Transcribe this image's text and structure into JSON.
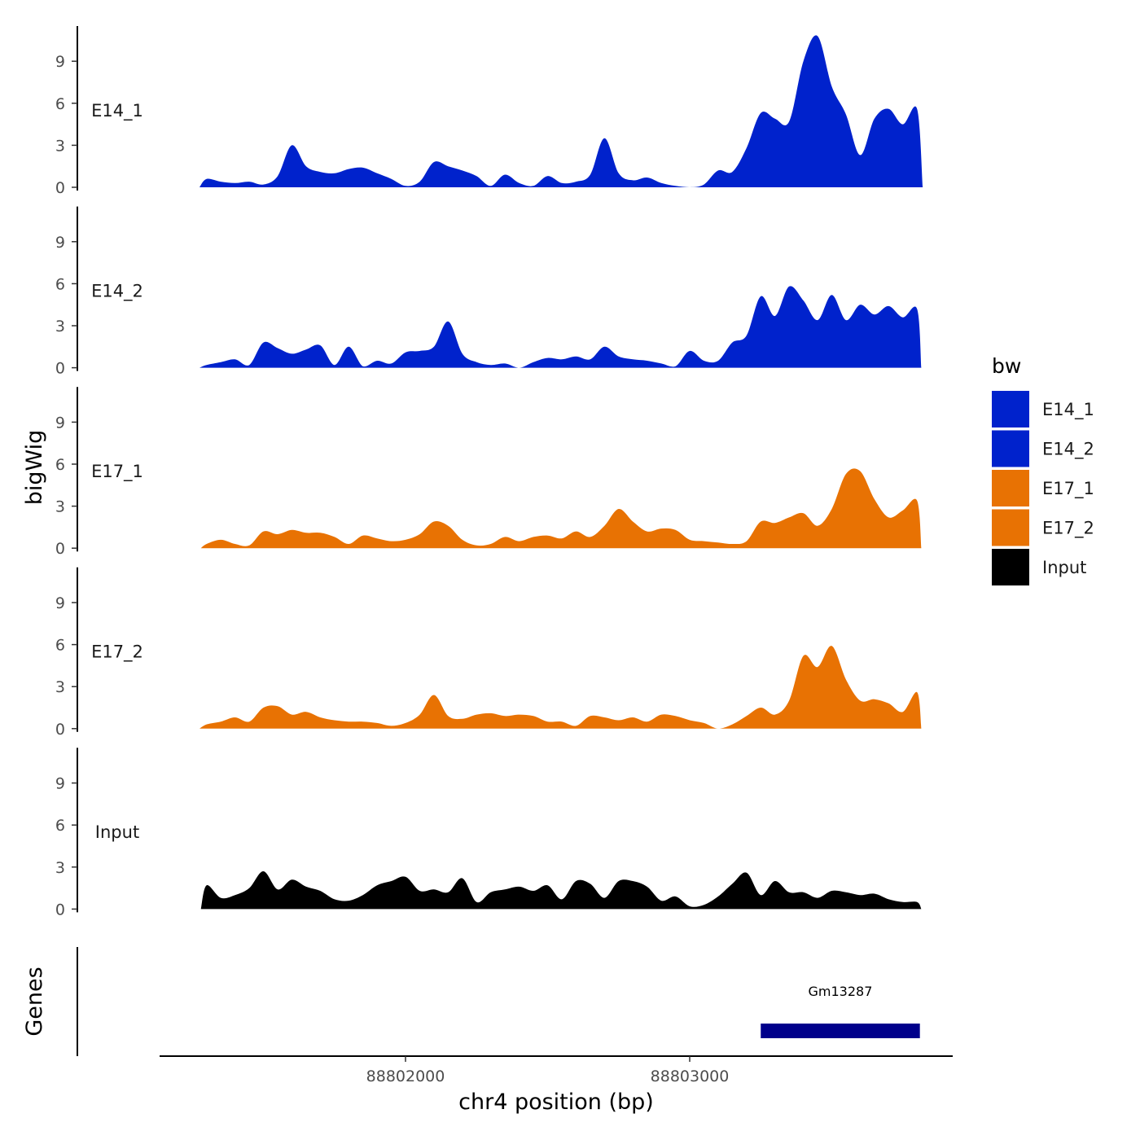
{
  "chart_data": {
    "type": "area",
    "title": "",
    "ylabel": "bigWig",
    "xlabel": "chr4 position (bp)",
    "xlim": [
      88801140,
      88803950
    ],
    "ylim": [
      0,
      11
    ],
    "yticks": [
      0,
      3,
      6,
      9
    ],
    "xticks": [
      88802000,
      88803000
    ],
    "xtick_labels": [
      "88802000",
      "88803000"
    ],
    "genes_label": "Genes",
    "legend_title": "bw",
    "legend": [
      {
        "name": "E14_1",
        "color": "#0022CC"
      },
      {
        "name": "E14_2",
        "color": "#0022CC"
      },
      {
        "name": "E17_1",
        "color": "#E87203"
      },
      {
        "name": "E17_2",
        "color": "#E87203"
      },
      {
        "name": "Input",
        "color": "#000000"
      }
    ],
    "tracks": [
      {
        "name": "E14_1",
        "color": "#0022CC",
        "x": [
          88801275,
          88801300,
          88801350,
          88801400,
          88801450,
          88801500,
          88801550,
          88801600,
          88801650,
          88801700,
          88801750,
          88801800,
          88801850,
          88801900,
          88801950,
          88802000,
          88802050,
          88802100,
          88802150,
          88802200,
          88802250,
          88802300,
          88802350,
          88802400,
          88802450,
          88802500,
          88802550,
          88802600,
          88802650,
          88802700,
          88802750,
          88802800,
          88802850,
          88802900,
          88802950,
          88803000,
          88803050,
          88803100,
          88803150,
          88803200,
          88803250,
          88803300,
          88803350,
          88803400,
          88803450,
          88803500,
          88803550,
          88803600,
          88803650,
          88803700,
          88803750,
          88803800,
          88803820
        ],
        "y": [
          0,
          0.6,
          0.4,
          0.3,
          0.4,
          0.2,
          0.8,
          3.0,
          1.5,
          1.1,
          1.0,
          1.3,
          1.4,
          1.0,
          0.6,
          0.1,
          0.4,
          1.8,
          1.5,
          1.2,
          0.8,
          0.1,
          0.9,
          0.3,
          0.1,
          0.8,
          0.3,
          0.4,
          0.9,
          3.5,
          1.0,
          0.5,
          0.7,
          0.3,
          0.1,
          0.0,
          0.2,
          1.2,
          1.1,
          2.8,
          5.3,
          4.9,
          4.7,
          9.0,
          10.8,
          7.2,
          5.2,
          2.3,
          4.9,
          5.6,
          4.5,
          5.6,
          0
        ]
      },
      {
        "name": "E14_2",
        "color": "#0022CC",
        "x": [
          88801275,
          88801300,
          88801350,
          88801400,
          88801450,
          88801500,
          88801550,
          88801600,
          88801650,
          88801700,
          88801750,
          88801800,
          88801850,
          88801900,
          88801950,
          88802000,
          88802050,
          88802100,
          88802150,
          88802200,
          88802250,
          88802300,
          88802350,
          88802400,
          88802450,
          88802500,
          88802550,
          88802600,
          88802650,
          88802700,
          88802750,
          88802800,
          88802850,
          88802900,
          88802950,
          88803000,
          88803050,
          88803100,
          88803150,
          88803200,
          88803250,
          88803300,
          88803350,
          88803400,
          88803450,
          88803500,
          88803550,
          88803600,
          88803650,
          88803700,
          88803750,
          88803800,
          88803815
        ],
        "y": [
          0,
          0.2,
          0.4,
          0.6,
          0.2,
          1.8,
          1.4,
          1.0,
          1.3,
          1.6,
          0.2,
          1.5,
          0.1,
          0.5,
          0.3,
          1.1,
          1.2,
          1.5,
          3.3,
          1.0,
          0.4,
          0.2,
          0.3,
          0.0,
          0.4,
          0.7,
          0.6,
          0.8,
          0.6,
          1.5,
          0.8,
          0.6,
          0.5,
          0.3,
          0.1,
          1.2,
          0.5,
          0.5,
          1.8,
          2.3,
          5.1,
          3.7,
          5.8,
          4.8,
          3.4,
          5.2,
          3.4,
          4.5,
          3.8,
          4.4,
          3.6,
          4.2,
          0
        ]
      },
      {
        "name": "E17_1",
        "color": "#E87203",
        "x": [
          88801280,
          88801300,
          88801350,
          88801400,
          88801450,
          88801500,
          88801550,
          88801600,
          88801650,
          88801700,
          88801750,
          88801800,
          88801850,
          88801900,
          88801950,
          88802000,
          88802050,
          88802100,
          88802150,
          88802200,
          88802250,
          88802300,
          88802350,
          88802400,
          88802450,
          88802500,
          88802550,
          88802600,
          88802650,
          88802700,
          88802750,
          88802800,
          88802850,
          88802900,
          88802950,
          88803000,
          88803050,
          88803100,
          88803150,
          88803200,
          88803250,
          88803300,
          88803350,
          88803400,
          88803450,
          88803500,
          88803550,
          88803600,
          88803650,
          88803700,
          88803750,
          88803800,
          88803815
        ],
        "y": [
          0,
          0.3,
          0.6,
          0.3,
          0.2,
          1.2,
          1.0,
          1.3,
          1.1,
          1.1,
          0.8,
          0.3,
          0.9,
          0.7,
          0.5,
          0.6,
          1.0,
          1.9,
          1.6,
          0.6,
          0.2,
          0.3,
          0.8,
          0.5,
          0.8,
          0.9,
          0.7,
          1.2,
          0.8,
          1.6,
          2.8,
          1.9,
          1.2,
          1.4,
          1.3,
          0.6,
          0.5,
          0.4,
          0.3,
          0.5,
          1.9,
          1.8,
          2.2,
          2.5,
          1.6,
          2.8,
          5.3,
          5.5,
          3.5,
          2.2,
          2.7,
          3.4,
          0
        ]
      },
      {
        "name": "E17_2",
        "color": "#E87203",
        "x": [
          88801275,
          88801300,
          88801350,
          88801400,
          88801450,
          88801500,
          88801550,
          88801600,
          88801650,
          88801700,
          88801750,
          88801800,
          88801850,
          88801900,
          88801950,
          88802000,
          88802050,
          88802100,
          88802150,
          88802200,
          88802250,
          88802300,
          88802350,
          88802400,
          88802450,
          88802500,
          88802550,
          88802600,
          88802650,
          88802700,
          88802750,
          88802800,
          88802850,
          88802900,
          88802950,
          88803000,
          88803050,
          88803100,
          88803150,
          88803200,
          88803250,
          88803300,
          88803350,
          88803400,
          88803450,
          88803500,
          88803550,
          88803600,
          88803650,
          88803700,
          88803750,
          88803800,
          88803815
        ],
        "y": [
          0,
          0.3,
          0.5,
          0.8,
          0.5,
          1.5,
          1.6,
          1.0,
          1.2,
          0.8,
          0.6,
          0.5,
          0.5,
          0.4,
          0.2,
          0.4,
          1.0,
          2.4,
          0.9,
          0.7,
          1.0,
          1.1,
          0.9,
          1.0,
          0.9,
          0.5,
          0.5,
          0.2,
          0.9,
          0.8,
          0.6,
          0.8,
          0.5,
          1.0,
          0.9,
          0.6,
          0.4,
          0.0,
          0.3,
          0.9,
          1.5,
          1.0,
          2.0,
          5.2,
          4.4,
          5.9,
          3.5,
          2.0,
          2.1,
          1.8,
          1.2,
          2.6,
          0
        ]
      },
      {
        "name": "Input",
        "color": "#000000",
        "x": [
          88801280,
          88801300,
          88801350,
          88801400,
          88801450,
          88801500,
          88801550,
          88801600,
          88801650,
          88801700,
          88801750,
          88801800,
          88801850,
          88801900,
          88801950,
          88802000,
          88802050,
          88802100,
          88802150,
          88802200,
          88802250,
          88802300,
          88802350,
          88802400,
          88802450,
          88802500,
          88802550,
          88802600,
          88802650,
          88802700,
          88802750,
          88802800,
          88802850,
          88802900,
          88802950,
          88803000,
          88803050,
          88803100,
          88803150,
          88803200,
          88803250,
          88803300,
          88803350,
          88803400,
          88803450,
          88803500,
          88803550,
          88803600,
          88803650,
          88803700,
          88803750,
          88803800,
          88803815
        ],
        "y": [
          0,
          1.7,
          0.8,
          1.0,
          1.5,
          2.7,
          1.4,
          2.1,
          1.6,
          1.3,
          0.7,
          0.6,
          1.0,
          1.7,
          2.0,
          2.3,
          1.3,
          1.4,
          1.2,
          2.2,
          0.5,
          1.2,
          1.4,
          1.6,
          1.3,
          1.7,
          0.7,
          2.0,
          1.8,
          0.8,
          2.0,
          2.0,
          1.6,
          0.6,
          0.9,
          0.2,
          0.3,
          0.9,
          1.8,
          2.6,
          1.0,
          2.0,
          1.2,
          1.2,
          0.8,
          1.3,
          1.2,
          1.0,
          1.1,
          0.7,
          0.5,
          0.5,
          0
        ]
      }
    ],
    "genes": [
      {
        "name": "Gm13287",
        "start": 88803250,
        "end": 88803810,
        "strand": "+",
        "color": "#00008B"
      }
    ]
  }
}
